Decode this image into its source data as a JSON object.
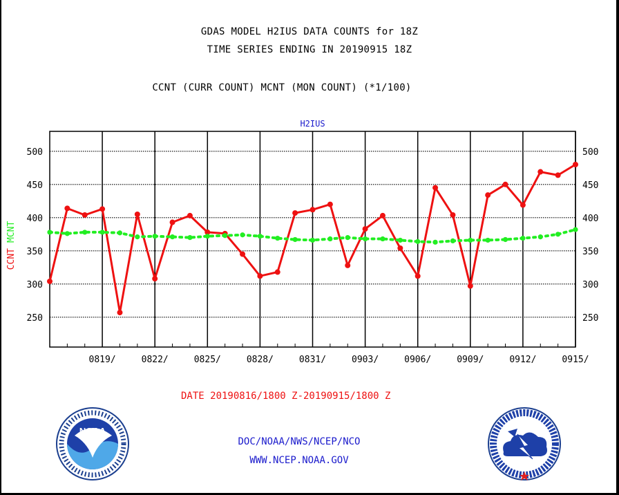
{
  "title_line1": "GDAS MODEL H2IUS DATA COUNTS for 18Z",
  "title_line2": "TIME SERIES ENDING IN 20190915 18Z",
  "subtitle": "CCNT (CURR COUNT) MCNT (MON COUNT) (*1/100)",
  "date_range": "DATE 20190816/1800 Z-20190915/1800 Z",
  "footer_line1": "DOC/NOAA/NWS/NCEP/NCO",
  "footer_line2": "WWW.NCEP.NOAA.GOV",
  "logos": {
    "left": {
      "name": "noaa-logo",
      "text": "NOAA",
      "ring_text": "NATIONAL OCEANIC AND ATMOSPHERIC ADMINISTRATION - U.S. DEPARTMENT OF COMMERCE"
    },
    "right": {
      "name": "nws-logo",
      "ring_text": "NATIONAL WEATHER SERVICE"
    }
  },
  "colors": {
    "ccnt": "#ee1111",
    "mcnt": "#22ee22",
    "title": "#000000",
    "panel_label": "#1a1acc",
    "footer": "#1a1acc"
  },
  "chart_data": {
    "type": "line",
    "panel_label": "H2IUS",
    "ylabel_parts": [
      {
        "text": "CCNT",
        "color": "#ee1111"
      },
      {
        "text": "MCNT",
        "color": "#22ee22"
      }
    ],
    "ylim": [
      205,
      530
    ],
    "xlim": [
      0,
      30
    ],
    "yticks": [
      250,
      300,
      350,
      400,
      450,
      500
    ],
    "xticks": [
      {
        "x": 3,
        "label": "0819/"
      },
      {
        "x": 6,
        "label": "0822/"
      },
      {
        "x": 9,
        "label": "0825/"
      },
      {
        "x": 12,
        "label": "0828/"
      },
      {
        "x": 15,
        "label": "0831/"
      },
      {
        "x": 18,
        "label": "0903/"
      },
      {
        "x": 21,
        "label": "0906/"
      },
      {
        "x": 24,
        "label": "0909/"
      },
      {
        "x": 27,
        "label": "0912/"
      },
      {
        "x": 30,
        "label": "0915/"
      }
    ],
    "grid": true,
    "series": [
      {
        "name": "CCNT",
        "color": "#ee1111",
        "x": [
          0,
          1,
          2,
          3,
          4,
          5,
          6,
          7,
          8,
          9,
          10,
          11,
          12,
          13,
          14,
          15,
          16,
          17,
          18,
          19,
          20,
          21,
          22,
          23,
          24,
          25,
          26,
          27,
          28,
          29,
          30
        ],
        "y": [
          304,
          414,
          404,
          413,
          257,
          405,
          308,
          393,
          403,
          378,
          376,
          345,
          312,
          318,
          407,
          412,
          420,
          328,
          383,
          403,
          354,
          312,
          445,
          404,
          297,
          434,
          450,
          419,
          469,
          464,
          480
        ]
      },
      {
        "name": "MCNT",
        "color": "#22ee22",
        "x": [
          0,
          1,
          2,
          3,
          4,
          5,
          6,
          7,
          8,
          9,
          10,
          11,
          12,
          13,
          14,
          15,
          16,
          17,
          18,
          19,
          20,
          21,
          22,
          23,
          24,
          25,
          26,
          27,
          28,
          29,
          30
        ],
        "y": [
          378,
          376,
          378,
          378,
          377,
          371,
          372,
          371,
          370,
          372,
          373,
          374,
          372,
          369,
          367,
          366,
          368,
          370,
          368,
          368,
          366,
          364,
          363,
          365,
          366,
          366,
          367,
          369,
          371,
          375,
          382
        ]
      }
    ]
  }
}
